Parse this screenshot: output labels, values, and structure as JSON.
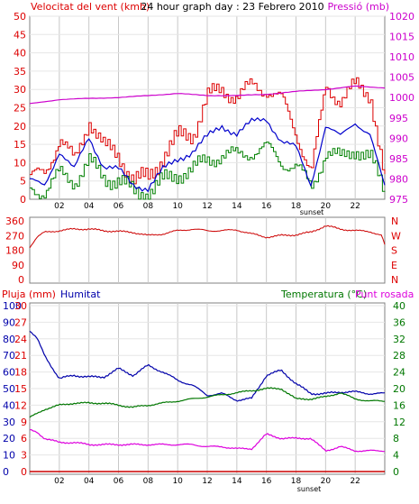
{
  "colors": {
    "wind": "#dd0000",
    "gust": "#0000cc",
    "mean": "#008000",
    "pressure": "#cc00cc",
    "direction": "#cc0000",
    "humidity": "#0000aa",
    "temperature": "#007700",
    "dewpoint": "#dd00dd",
    "rain": "#cc0000",
    "frame": "#808080",
    "label_blue": "#0000aa"
  },
  "chart_data": [
    {
      "type": "line",
      "title": "24 hour graph day : 23 Febrero 2010",
      "ylabel_left": "Velocitat del vent (kmh)",
      "ylabel_right": "Pressió (mb)",
      "xlim": [
        0,
        24
      ],
      "ylim_left": [
        0,
        50
      ],
      "ylim_right": [
        975,
        1020
      ],
      "yticks_left": [
        0,
        5,
        10,
        15,
        20,
        25,
        30,
        35,
        40,
        45,
        50
      ],
      "yticks_right": [
        975,
        980,
        985,
        990,
        995,
        1000,
        1005,
        1010,
        1015,
        1020
      ],
      "xticks": [
        2,
        4,
        6,
        8,
        10,
        12,
        14,
        16,
        18,
        20,
        22
      ],
      "xtick_labels": [
        "02",
        "04",
        "06",
        "08",
        "10",
        "12",
        "14",
        "16",
        "18",
        "20",
        "22"
      ],
      "sunset_label": "sunset",
      "grid": true,
      "series": [
        {
          "key": "gust",
          "axis": "left",
          "x": [
            0,
            1,
            2,
            3,
            4,
            5,
            6,
            7,
            8,
            9,
            10,
            11,
            12,
            13,
            14,
            15,
            16,
            17,
            18,
            19,
            20,
            21,
            22,
            23,
            24
          ],
          "values": [
            6,
            7,
            17,
            10,
            22,
            14,
            12,
            5,
            6,
            12,
            17,
            18,
            28,
            30,
            28,
            31,
            30,
            27,
            18,
            7,
            31,
            27,
            31,
            29,
            4
          ]
        },
        {
          "key": "average",
          "axis": "left",
          "x": [
            0,
            1,
            2,
            3,
            4,
            5,
            6,
            7,
            8,
            9,
            10,
            11,
            12,
            13,
            14,
            15,
            16,
            17,
            18,
            19,
            20,
            21,
            22,
            23,
            24
          ],
          "values": [
            5,
            4,
            13,
            8,
            17,
            9,
            8,
            4,
            3,
            8,
            11,
            13,
            17,
            20,
            18,
            21,
            22,
            16,
            14,
            4,
            20,
            17,
            21,
            18,
            3
          ]
        },
        {
          "key": "mean",
          "axis": "left",
          "x": [
            0,
            1,
            2,
            3,
            4,
            5,
            6,
            7,
            8,
            9,
            10,
            11,
            12,
            13,
            14,
            15,
            16,
            17,
            18,
            19,
            20,
            21,
            22,
            23,
            24
          ],
          "values": [
            3,
            2,
            7,
            5,
            10,
            6,
            5,
            2,
            2,
            5,
            7,
            8,
            11,
            12,
            12,
            13,
            14,
            10,
            9,
            3,
            13,
            11,
            14,
            11,
            2
          ]
        },
        {
          "key": "pressure",
          "axis": "right",
          "x": [
            0,
            2,
            4,
            6,
            8,
            10,
            12,
            14,
            16,
            18,
            20,
            22,
            23,
            24
          ],
          "values": [
            998.5,
            999.5,
            999.8,
            1000,
            1000.5,
            1001,
            1000.5,
            1000.5,
            1000.8,
            1001.5,
            1002,
            1002.8,
            1002.6,
            1002.4
          ]
        }
      ]
    },
    {
      "type": "line",
      "yticks": [
        0,
        90,
        180,
        270,
        360
      ],
      "ylim": [
        0,
        360
      ],
      "compass_labels": [
        "N",
        "W",
        "S",
        "E",
        "N"
      ],
      "series": [
        {
          "key": "direction",
          "x": [
            0,
            0.5,
            1,
            2,
            3,
            4,
            5,
            6,
            7,
            8,
            9,
            10,
            11,
            12,
            13,
            14,
            15,
            16,
            17,
            18,
            19,
            20,
            21,
            22,
            23,
            23.8,
            24
          ],
          "values": [
            200,
            260,
            290,
            300,
            310,
            310,
            300,
            295,
            290,
            270,
            280,
            300,
            310,
            300,
            300,
            305,
            280,
            260,
            270,
            275,
            290,
            330,
            310,
            300,
            295,
            270,
            210
          ]
        }
      ]
    },
    {
      "type": "line",
      "labels": {
        "rain": "Pluja (mm)",
        "humidity": "Humitat",
        "temperature": "Temperatura (°C)",
        "dewpoint": "Punt rosada"
      },
      "yticks_humidity": [
        0,
        10,
        20,
        30,
        40,
        50,
        60,
        70,
        80,
        90,
        100
      ],
      "yticks_rain": [
        0,
        3,
        6,
        9,
        12,
        15,
        18,
        21,
        24,
        27,
        30
      ],
      "yticks_temp_right": [
        0,
        4,
        8,
        12,
        16,
        20,
        24,
        28,
        32,
        36,
        40
      ],
      "ylim_humidity": [
        0,
        100
      ],
      "ylim_rain": [
        0,
        30
      ],
      "ylim_temp": [
        0,
        40
      ],
      "xticks": [
        2,
        4,
        6,
        8,
        10,
        12,
        14,
        16,
        18,
        20,
        22
      ],
      "xtick_labels": [
        "02",
        "04",
        "06",
        "08",
        "10",
        "12",
        "14",
        "16",
        "18",
        "20",
        "22"
      ],
      "sunset_label": "sunset",
      "series": [
        {
          "key": "humidity",
          "axis": "humidity",
          "x": [
            0,
            0.5,
            1,
            2,
            3,
            4,
            5,
            6,
            7,
            8,
            9,
            10,
            11,
            12,
            13,
            14,
            15,
            16,
            17,
            18,
            19,
            20,
            21,
            22,
            23,
            24
          ],
          "values": [
            85,
            80,
            70,
            56,
            58,
            57,
            57,
            62,
            58,
            64,
            60,
            55,
            52,
            46,
            47,
            43,
            44,
            58,
            61,
            53,
            47,
            47,
            48,
            48,
            47,
            47
          ]
        },
        {
          "key": "temperature",
          "axis": "temp",
          "x": [
            0,
            1,
            2,
            3,
            4,
            5,
            6,
            7,
            8,
            9,
            10,
            11,
            12,
            13,
            14,
            15,
            16,
            17,
            18,
            19,
            20,
            21,
            22,
            23,
            24
          ],
          "values": [
            13,
            15,
            16,
            16.5,
            16.5,
            16.5,
            16,
            15.5,
            16,
            16.5,
            17,
            17.5,
            18,
            18.5,
            19,
            19.5,
            20,
            20,
            17.5,
            17.5,
            18,
            19,
            17.5,
            17,
            17
          ]
        },
        {
          "key": "dewpoint",
          "axis": "temp",
          "x": [
            0,
            0.5,
            1,
            2,
            3,
            4,
            5,
            6,
            7,
            8,
            9,
            10,
            11,
            12,
            13,
            14,
            15,
            16,
            17,
            18,
            19,
            20,
            21,
            22,
            23,
            24
          ],
          "values": [
            10,
            9.5,
            8,
            7,
            7,
            6.5,
            6.5,
            6.5,
            6.5,
            6.5,
            6.5,
            6.5,
            6.5,
            6,
            6,
            5.5,
            5.5,
            9,
            8,
            8,
            8,
            5,
            6,
            5,
            5,
            5
          ]
        },
        {
          "key": "rain",
          "axis": "rain",
          "x": [
            0,
            24
          ],
          "values": [
            0,
            0
          ]
        }
      ]
    }
  ]
}
